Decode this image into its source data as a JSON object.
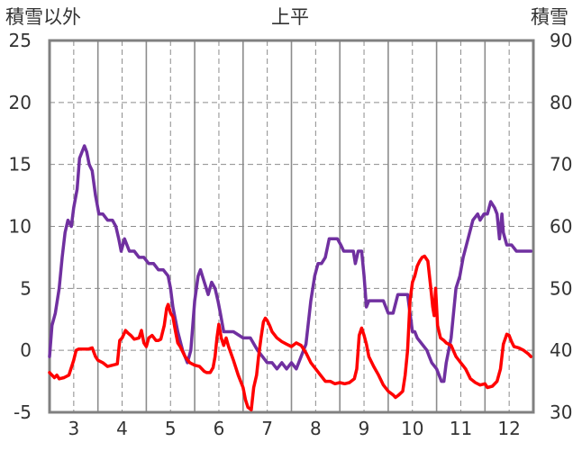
{
  "chart_data": {
    "type": "line",
    "title": "上平",
    "ylabel_left": "積雪以外",
    "ylabel_right": "積雪",
    "x_ticks": [
      "3",
      "4",
      "5",
      "6",
      "7",
      "8",
      "9",
      "10",
      "11",
      "12"
    ],
    "xlim": [
      2.5,
      12.5
    ],
    "ylim_left": [
      -5,
      25
    ],
    "ylim_right": [
      30,
      90
    ],
    "yticks_left": [
      -5,
      0,
      5,
      10,
      15,
      20,
      25
    ],
    "yticks_right": [
      30,
      40,
      50,
      60,
      70,
      80,
      90
    ],
    "grid": true,
    "series": [
      {
        "axis": "right",
        "color": "#7030a0",
        "points": [
          [
            2.5,
            39
          ],
          [
            2.55,
            44
          ],
          [
            2.62,
            46
          ],
          [
            2.7,
            50
          ],
          [
            2.76,
            55
          ],
          [
            2.82,
            59
          ],
          [
            2.88,
            61
          ],
          [
            2.95,
            60
          ],
          [
            3.0,
            63
          ],
          [
            3.07,
            66
          ],
          [
            3.12,
            71
          ],
          [
            3.17,
            72
          ],
          [
            3.22,
            73
          ],
          [
            3.27,
            72
          ],
          [
            3.32,
            70
          ],
          [
            3.38,
            69
          ],
          [
            3.45,
            65
          ],
          [
            3.52,
            62
          ],
          [
            3.6,
            62
          ],
          [
            3.7,
            61
          ],
          [
            3.8,
            61
          ],
          [
            3.87,
            60
          ],
          [
            3.93,
            58
          ],
          [
            3.98,
            56
          ],
          [
            4.05,
            58
          ],
          [
            4.15,
            56
          ],
          [
            4.25,
            56
          ],
          [
            4.35,
            55
          ],
          [
            4.45,
            55
          ],
          [
            4.55,
            54
          ],
          [
            4.65,
            54
          ],
          [
            4.75,
            53
          ],
          [
            4.85,
            53
          ],
          [
            4.95,
            52
          ],
          [
            5.0,
            50
          ],
          [
            5.05,
            47
          ],
          [
            5.15,
            43
          ],
          [
            5.25,
            40
          ],
          [
            5.35,
            38
          ],
          [
            5.42,
            40
          ],
          [
            5.5,
            48
          ],
          [
            5.57,
            52
          ],
          [
            5.62,
            53
          ],
          [
            5.7,
            51
          ],
          [
            5.78,
            49
          ],
          [
            5.85,
            51
          ],
          [
            5.92,
            50
          ],
          [
            5.98,
            48
          ],
          [
            6.03,
            46
          ],
          [
            6.1,
            43
          ],
          [
            6.3,
            43
          ],
          [
            6.5,
            42
          ],
          [
            6.65,
            42
          ],
          [
            6.8,
            40
          ],
          [
            6.9,
            39
          ],
          [
            7.0,
            38
          ],
          [
            7.1,
            38
          ],
          [
            7.2,
            37
          ],
          [
            7.3,
            38
          ],
          [
            7.4,
            37
          ],
          [
            7.5,
            38
          ],
          [
            7.6,
            37
          ],
          [
            7.7,
            39
          ],
          [
            7.8,
            41
          ],
          [
            7.9,
            48
          ],
          [
            7.98,
            52
          ],
          [
            8.05,
            54
          ],
          [
            8.12,
            54
          ],
          [
            8.2,
            55
          ],
          [
            8.28,
            58
          ],
          [
            8.35,
            58
          ],
          [
            8.45,
            58
          ],
          [
            8.52,
            57
          ],
          [
            8.58,
            56
          ],
          [
            8.65,
            56
          ],
          [
            8.72,
            56
          ],
          [
            8.78,
            56
          ],
          [
            8.82,
            54
          ],
          [
            8.88,
            56
          ],
          [
            8.95,
            56
          ],
          [
            9.0,
            52
          ],
          [
            9.05,
            47
          ],
          [
            9.1,
            48
          ],
          [
            9.2,
            48
          ],
          [
            9.3,
            48
          ],
          [
            9.4,
            48
          ],
          [
            9.5,
            46
          ],
          [
            9.6,
            46
          ],
          [
            9.7,
            49
          ],
          [
            9.8,
            49
          ],
          [
            9.9,
            49
          ],
          [
            9.95,
            46
          ],
          [
            10.0,
            43
          ],
          [
            10.05,
            43
          ],
          [
            10.1,
            42
          ],
          [
            10.2,
            41
          ],
          [
            10.3,
            40
          ],
          [
            10.35,
            39
          ],
          [
            10.4,
            38
          ],
          [
            10.5,
            37
          ],
          [
            10.55,
            36
          ],
          [
            10.6,
            35
          ],
          [
            10.65,
            35
          ],
          [
            10.7,
            38
          ],
          [
            10.8,
            42
          ],
          [
            10.9,
            50
          ],
          [
            10.98,
            52
          ],
          [
            11.05,
            55
          ],
          [
            11.15,
            58
          ],
          [
            11.25,
            61
          ],
          [
            11.35,
            62
          ],
          [
            11.4,
            61
          ],
          [
            11.48,
            62
          ],
          [
            11.55,
            62
          ],
          [
            11.62,
            64
          ],
          [
            11.7,
            63
          ],
          [
            11.75,
            62
          ],
          [
            11.8,
            58
          ],
          [
            11.85,
            62
          ],
          [
            11.88,
            59
          ],
          [
            11.95,
            57
          ],
          [
            12.05,
            57
          ],
          [
            12.15,
            56
          ],
          [
            12.25,
            56
          ],
          [
            12.35,
            56
          ],
          [
            12.45,
            56
          ]
        ]
      },
      {
        "axis": "left",
        "color": "#ff0000",
        "points": [
          [
            2.5,
            -1.8
          ],
          [
            2.55,
            -2.0
          ],
          [
            2.6,
            -2.2
          ],
          [
            2.65,
            -2.0
          ],
          [
            2.7,
            -2.3
          ],
          [
            2.8,
            -2.2
          ],
          [
            2.9,
            -2.0
          ],
          [
            3.0,
            -0.8
          ],
          [
            3.05,
            0
          ],
          [
            3.1,
            0.1
          ],
          [
            3.2,
            0.1
          ],
          [
            3.3,
            0.1
          ],
          [
            3.38,
            0.2
          ],
          [
            3.45,
            -0.5
          ],
          [
            3.5,
            -0.8
          ],
          [
            3.6,
            -1.0
          ],
          [
            3.7,
            -1.3
          ],
          [
            3.8,
            -1.2
          ],
          [
            3.9,
            -1.1
          ],
          [
            3.95,
            0.8
          ],
          [
            4.0,
            1.0
          ],
          [
            4.07,
            1.6
          ],
          [
            4.12,
            1.4
          ],
          [
            4.18,
            1.2
          ],
          [
            4.25,
            0.9
          ],
          [
            4.35,
            1.0
          ],
          [
            4.4,
            1.6
          ],
          [
            4.45,
            0.6
          ],
          [
            4.5,
            0.3
          ],
          [
            4.55,
            1.0
          ],
          [
            4.62,
            1.2
          ],
          [
            4.7,
            0.8
          ],
          [
            4.75,
            0.8
          ],
          [
            4.8,
            0.9
          ],
          [
            4.87,
            2.0
          ],
          [
            4.92,
            3.4
          ],
          [
            4.95,
            3.7
          ],
          [
            5.0,
            3.0
          ],
          [
            5.05,
            2.7
          ],
          [
            5.1,
            1.6
          ],
          [
            5.15,
            0.6
          ],
          [
            5.2,
            0.3
          ],
          [
            5.3,
            -0.5
          ],
          [
            5.4,
            -1.0
          ],
          [
            5.5,
            -1.2
          ],
          [
            5.6,
            -1.3
          ],
          [
            5.7,
            -1.7
          ],
          [
            5.75,
            -1.8
          ],
          [
            5.82,
            -1.8
          ],
          [
            5.88,
            -1.4
          ],
          [
            5.92,
            -0.5
          ],
          [
            5.96,
            1.0
          ],
          [
            6.0,
            2.1
          ],
          [
            6.05,
            1.0
          ],
          [
            6.1,
            0.4
          ],
          [
            6.15,
            1.0
          ],
          [
            6.2,
            0.3
          ],
          [
            6.3,
            -0.8
          ],
          [
            6.4,
            -2.0
          ],
          [
            6.5,
            -3.0
          ],
          [
            6.55,
            -4.0
          ],
          [
            6.6,
            -4.6
          ],
          [
            6.67,
            -4.8
          ],
          [
            6.72,
            -3.0
          ],
          [
            6.78,
            -2.0
          ],
          [
            6.82,
            -0.5
          ],
          [
            6.87,
            1.0
          ],
          [
            6.92,
            2.3
          ],
          [
            6.96,
            2.6
          ],
          [
            7.0,
            2.4
          ],
          [
            7.05,
            2.0
          ],
          [
            7.1,
            1.5
          ],
          [
            7.2,
            1.0
          ],
          [
            7.3,
            0.7
          ],
          [
            7.4,
            0.5
          ],
          [
            7.5,
            0.3
          ],
          [
            7.6,
            0.6
          ],
          [
            7.7,
            0.4
          ],
          [
            7.8,
            -0.2
          ],
          [
            7.9,
            -1.0
          ],
          [
            8.0,
            -1.5
          ],
          [
            8.1,
            -2.0
          ],
          [
            8.2,
            -2.5
          ],
          [
            8.3,
            -2.5
          ],
          [
            8.4,
            -2.7
          ],
          [
            8.5,
            -2.6
          ],
          [
            8.6,
            -2.7
          ],
          [
            8.7,
            -2.6
          ],
          [
            8.8,
            -2.3
          ],
          [
            8.85,
            -1.5
          ],
          [
            8.9,
            1.2
          ],
          [
            8.95,
            1.8
          ],
          [
            9.0,
            1.2
          ],
          [
            9.05,
            0.5
          ],
          [
            9.1,
            -0.5
          ],
          [
            9.2,
            -1.3
          ],
          [
            9.3,
            -2.0
          ],
          [
            9.4,
            -2.8
          ],
          [
            9.5,
            -3.3
          ],
          [
            9.6,
            -3.6
          ],
          [
            9.65,
            -3.8
          ],
          [
            9.72,
            -3.6
          ],
          [
            9.8,
            -3.3
          ],
          [
            9.85,
            -2.0
          ],
          [
            9.9,
            0
          ],
          [
            9.95,
            4.0
          ],
          [
            10.0,
            5.5
          ],
          [
            10.05,
            6.0
          ],
          [
            10.1,
            6.8
          ],
          [
            10.15,
            7.2
          ],
          [
            10.2,
            7.5
          ],
          [
            10.25,
            7.6
          ],
          [
            10.32,
            7.2
          ],
          [
            10.38,
            5.0
          ],
          [
            10.42,
            3.5
          ],
          [
            10.45,
            2.8
          ],
          [
            10.48,
            5.0
          ],
          [
            10.52,
            2.0
          ],
          [
            10.58,
            1.0
          ],
          [
            10.65,
            0.8
          ],
          [
            10.7,
            0.6
          ],
          [
            10.8,
            0.4
          ],
          [
            10.9,
            -0.5
          ],
          [
            11.0,
            -1.0
          ],
          [
            11.1,
            -1.5
          ],
          [
            11.2,
            -2.3
          ],
          [
            11.3,
            -2.6
          ],
          [
            11.4,
            -2.8
          ],
          [
            11.5,
            -2.7
          ],
          [
            11.55,
            -3.0
          ],
          [
            11.65,
            -2.9
          ],
          [
            11.75,
            -2.5
          ],
          [
            11.82,
            -1.5
          ],
          [
            11.88,
            0.5
          ],
          [
            11.95,
            1.3
          ],
          [
            12.0,
            1.2
          ],
          [
            12.05,
            0.7
          ],
          [
            12.1,
            0.3
          ],
          [
            12.2,
            0.2
          ],
          [
            12.3,
            0
          ],
          [
            12.4,
            -0.3
          ],
          [
            12.45,
            -0.5
          ]
        ]
      }
    ]
  }
}
